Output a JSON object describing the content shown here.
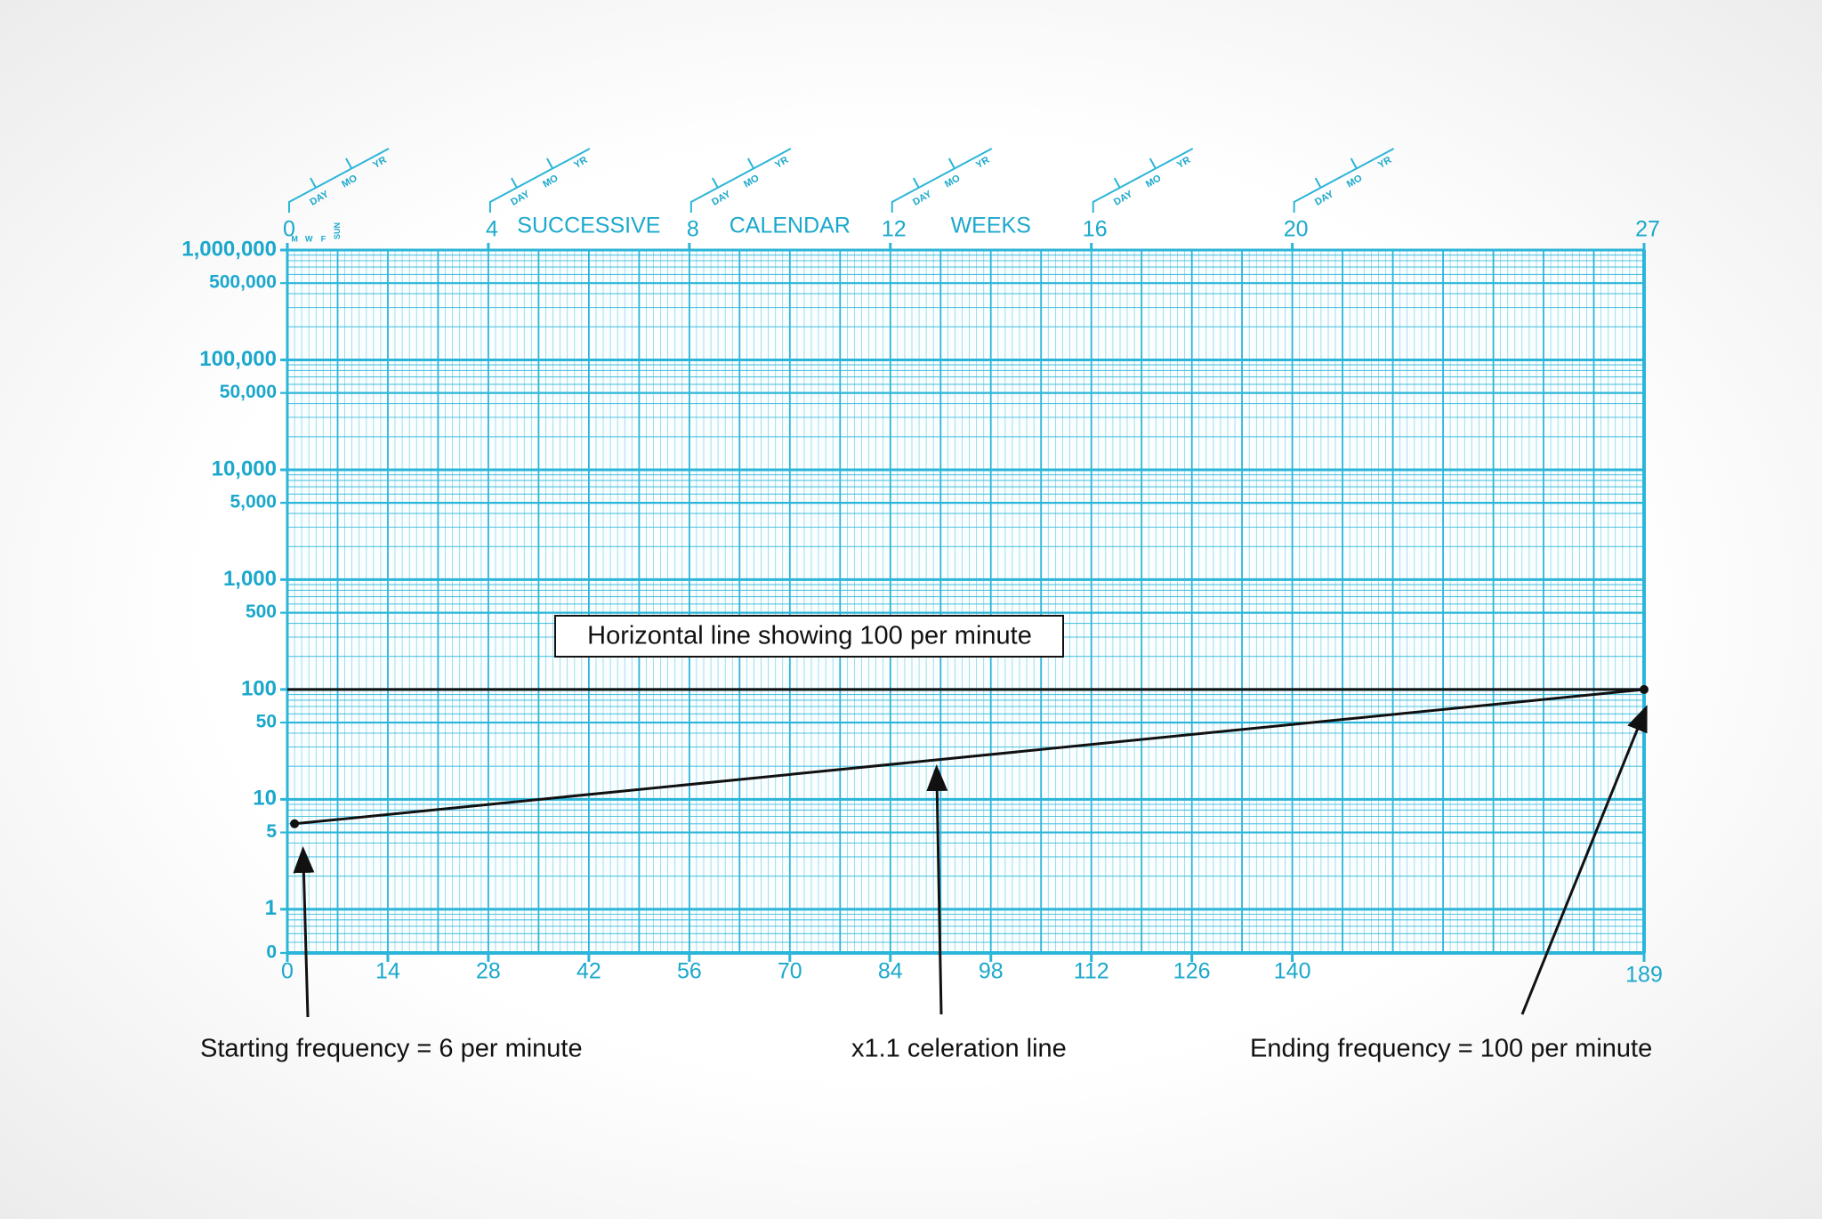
{
  "chart_data": {
    "type": "line",
    "log_y": true,
    "grid": true,
    "grid_color": "#2bb5d8",
    "label_color": "#1ba8cc",
    "xlim": [
      0,
      189
    ],
    "xticks": [
      0,
      14,
      28,
      42,
      56,
      70,
      84,
      98,
      112,
      126,
      140,
      189
    ],
    "x2lim": [
      0,
      27
    ],
    "x2ticks": [
      0,
      4,
      8,
      12,
      16,
      20,
      27
    ],
    "x2_label_words": [
      "SUCCESSIVE",
      "CALENDAR",
      "WEEKS"
    ],
    "top_scale_labels": [
      "DAY",
      "MO",
      "YR"
    ],
    "weekday_labels": [
      "M",
      "W",
      "F",
      "SUN"
    ],
    "ylim": [
      0.4,
      1000000
    ],
    "yticks": [
      {
        "value": 0.4,
        "label": "0"
      },
      1,
      5,
      10,
      50,
      100,
      500,
      {
        "value": 1000,
        "label": "1,000"
      },
      {
        "value": 5000,
        "label": "5,000"
      },
      {
        "value": 10000,
        "label": "10,000"
      },
      {
        "value": 50000,
        "label": "50,000"
      },
      {
        "value": 100000,
        "label": "100,000"
      },
      {
        "value": 500000,
        "label": "500,000"
      },
      {
        "value": 1000000,
        "label": "1,000,000"
      }
    ],
    "series": [
      {
        "color": "#111111",
        "x": [
          0,
          189
        ],
        "values": [
          100,
          100
        ],
        "markers": false
      },
      {
        "color": "#111111",
        "x": [
          1,
          189
        ],
        "values": [
          6,
          100
        ],
        "markers": true
      }
    ],
    "annotations": [
      "Horizontal line showing 100 per minute",
      "Starting frequency = 6 per minute",
      "x1.1 celeration line",
      "Ending frequency = 100 per minute"
    ]
  }
}
